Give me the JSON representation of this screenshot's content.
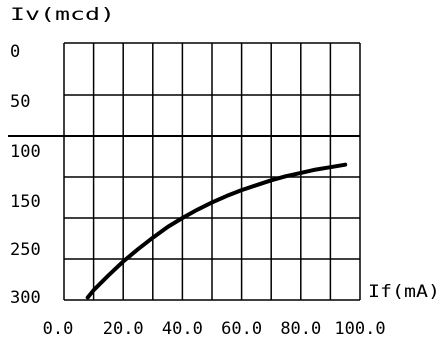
{
  "chart_data": {
    "type": "line",
    "title": "",
    "xlabel": "If(mA)",
    "ylabel": "Iv(mcd)",
    "x_ticks": [
      {
        "value": 0,
        "label": "0.0"
      },
      {
        "value": 20,
        "label": "20.0"
      },
      {
        "value": 40,
        "label": "40.0"
      },
      {
        "value": 60,
        "label": "60.0"
      },
      {
        "value": 80,
        "label": "80.0"
      },
      {
        "value": 100,
        "label": "100.0"
      }
    ],
    "y_ticks": [
      {
        "value": 0,
        "label": "0"
      },
      {
        "value": 50,
        "label": "50"
      },
      {
        "value": 100,
        "label": "100"
      },
      {
        "value": 150,
        "label": "150"
      },
      {
        "value": 250,
        "label": "250"
      },
      {
        "value": 300,
        "label": "300"
      }
    ],
    "x_grid_count": 10,
    "y_grid": [
      0,
      50,
      100,
      150,
      200,
      250
    ],
    "y_highlight": 200,
    "xlim": [
      0,
      100
    ],
    "ylim": [
      0,
      250
    ],
    "grid": true,
    "series": [
      {
        "x": [
          8,
          10,
          15,
          20,
          25,
          30,
          35,
          40,
          45,
          50,
          55,
          60,
          65,
          70,
          75,
          80,
          85,
          90,
          95
        ],
        "y": [
          3,
          12,
          30,
          47,
          62,
          76,
          89,
          100,
          110,
          119,
          127,
          134,
          140,
          146,
          151,
          155,
          159,
          162,
          165
        ]
      }
    ],
    "color": "#000000"
  }
}
